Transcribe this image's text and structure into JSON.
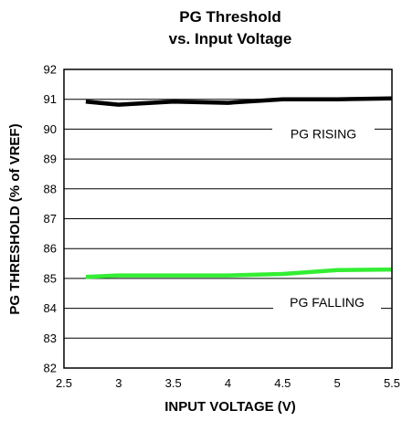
{
  "chart_data": {
    "type": "line",
    "title": "PG Threshold",
    "subtitle": "vs. Input Voltage",
    "xlabel": "INPUT VOLTAGE (V)",
    "ylabel": "PG THRESHOLD (% of  VREF)",
    "xlim": [
      2.5,
      5.5
    ],
    "ylim": [
      82,
      92
    ],
    "x_ticks": [
      2.5,
      3,
      3.5,
      4,
      4.5,
      5,
      5.5
    ],
    "x_tick_labels": [
      "2.5",
      "3",
      "3.5",
      "4",
      "4.5",
      "5",
      "5.5"
    ],
    "y_ticks": [
      82,
      83,
      84,
      85,
      86,
      87,
      88,
      89,
      90,
      91,
      92
    ],
    "y_tick_labels": [
      "82",
      "83",
      "84",
      "85",
      "86",
      "87",
      "88",
      "89",
      "90",
      "91",
      "92"
    ],
    "grid": true,
    "series": [
      {
        "name": "PG RISING",
        "color": "#000000",
        "x": [
          2.7,
          3.0,
          3.5,
          4.0,
          4.5,
          5.0,
          5.5
        ],
        "y": [
          90.92,
          90.82,
          90.92,
          90.88,
          91.0,
          91.0,
          91.03
        ]
      },
      {
        "name": "PG FALLING",
        "color": "#33ee33",
        "x": [
          2.7,
          3.0,
          3.5,
          4.0,
          4.5,
          5.0,
          5.5
        ],
        "y": [
          85.05,
          85.1,
          85.1,
          85.1,
          85.15,
          85.28,
          85.3
        ]
      }
    ],
    "annotations": [
      "PG RISING",
      "PG FALLING"
    ]
  }
}
